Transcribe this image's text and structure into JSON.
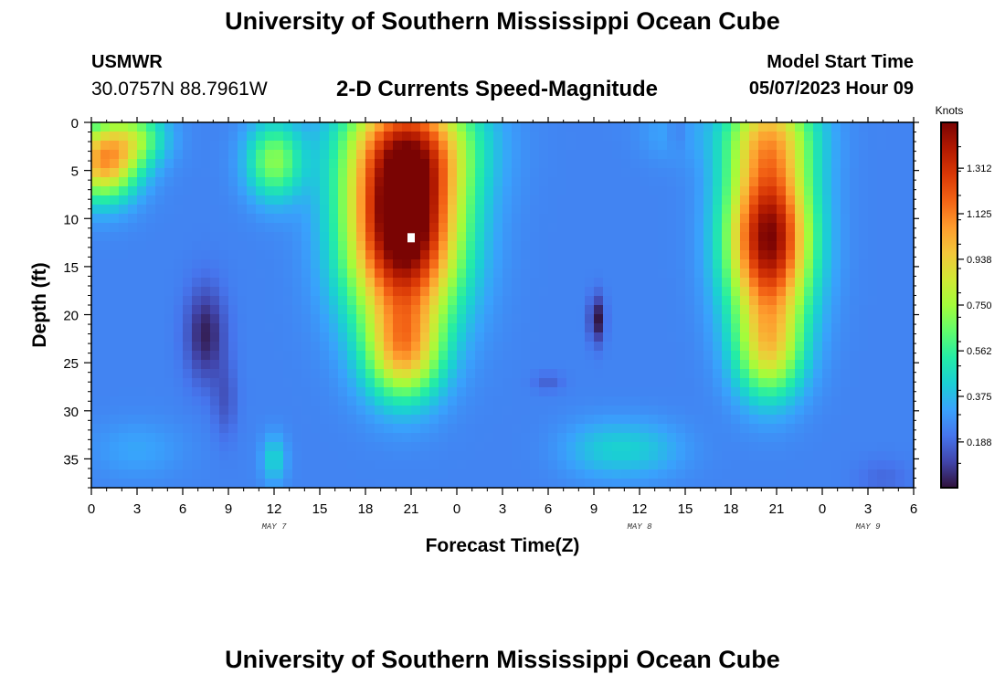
{
  "header": {
    "title": "University of Southern Mississippi Ocean Cube",
    "station": "USMWR",
    "coords": "30.0757N  88.7961W",
    "subtitle": "2-D Currents Speed-Magnitude",
    "model_start_label": "Model Start Time",
    "model_start_value": "05/07/2023 Hour 09"
  },
  "footer": {
    "title": "University of Southern Mississippi Ocean Cube"
  },
  "chart_data": {
    "type": "heatmap",
    "title": "2-D Currents Speed-Magnitude",
    "xlabel": "Forecast Time(Z)",
    "ylabel": "Depth (ft)",
    "x_tick_labels": [
      "0",
      "3",
      "6",
      "9",
      "12",
      "15",
      "18",
      "21",
      "0",
      "3",
      "6",
      "9",
      "12",
      "15",
      "18",
      "21",
      "0",
      "3",
      "6"
    ],
    "x_range_hours": [
      0,
      54
    ],
    "date_labels": [
      {
        "text": "MAY 7",
        "hour": 12
      },
      {
        "text": "MAY 8",
        "hour": 36
      },
      {
        "text": "MAY 9",
        "hour": 51
      }
    ],
    "y_ticks": [
      0,
      5,
      10,
      15,
      20,
      25,
      30,
      35
    ],
    "ylim": [
      0,
      38
    ],
    "y_inverted": true,
    "colorbar": {
      "label": "Knots",
      "ticks": [
        "1.312",
        "1.125",
        "0.938",
        "0.750",
        "0.562",
        "0.375",
        "0.188"
      ],
      "tick_values": [
        1.312,
        1.125,
        0.938,
        0.75,
        0.562,
        0.375,
        0.188
      ],
      "range": [
        0,
        1.5
      ],
      "colors": [
        "#30123b",
        "#4145ab",
        "#4675ed",
        "#39a2fc",
        "#1bcfd4",
        "#24eca6",
        "#61fc6c",
        "#a4fc3b",
        "#d1e834",
        "#f3c63a",
        "#fe9b2d",
        "#f36315",
        "#d93806",
        "#b11901",
        "#7a0403"
      ]
    },
    "speed_blobs_knots": [
      {
        "t": 20.5,
        "d": 11,
        "rt": 3.6,
        "rd": 10,
        "a": 1.4
      },
      {
        "t": 20.5,
        "d": 24,
        "rt": 2.4,
        "rd": 5,
        "a": 0.6
      },
      {
        "t": 21,
        "d": 2,
        "rt": 4.2,
        "rd": 6,
        "a": 0.6
      },
      {
        "t": 44.5,
        "d": 12,
        "rt": 2.7,
        "rd": 9,
        "a": 1.25
      },
      {
        "t": 44.5,
        "d": 1,
        "rt": 3,
        "rd": 5,
        "a": 0.5
      },
      {
        "t": 44.5,
        "d": 24,
        "rt": 2.2,
        "rd": 5,
        "a": 0.5
      },
      {
        "t": 0.8,
        "d": 4,
        "rt": 2.2,
        "rd": 4,
        "a": 0.8
      },
      {
        "t": 3,
        "d": 1.5,
        "rt": 2,
        "rd": 3,
        "a": 0.35
      },
      {
        "t": 12,
        "d": 4,
        "rt": 1.8,
        "rd": 4,
        "a": 0.45
      },
      {
        "t": 12,
        "d": 35,
        "rt": 0.8,
        "rd": 2.5,
        "a": 0.2
      },
      {
        "t": 3,
        "d": 34,
        "rt": 3,
        "rd": 3,
        "a": 0.08
      },
      {
        "t": 36,
        "d": 34,
        "rt": 3,
        "rd": 3,
        "a": 0.15
      },
      {
        "t": 33,
        "d": 34,
        "rt": 2.5,
        "rd": 3,
        "a": 0.1
      },
      {
        "t": 38,
        "d": 1,
        "rt": 2,
        "rd": 3,
        "a": 0.08
      },
      {
        "t": 7.5,
        "d": 22,
        "rt": 1.3,
        "rd": 5,
        "a": -0.22
      },
      {
        "t": 8.8,
        "d": 29,
        "rt": 0.8,
        "rd": 4,
        "a": -0.1
      },
      {
        "t": 33.2,
        "d": 20.5,
        "rt": 0.5,
        "rd": 2.5,
        "a": -0.25
      },
      {
        "t": 30,
        "d": 27,
        "rt": 1,
        "rd": 1,
        "a": -0.08
      },
      {
        "t": 38.5,
        "d": 1,
        "rt": 0.7,
        "rd": 2,
        "a": -0.08
      },
      {
        "t": 52,
        "d": 37,
        "rt": 1.8,
        "rd": 2,
        "a": -0.06
      }
    ],
    "speed_background_knots": 0.25,
    "max_marker": {
      "hour": 21,
      "depth": 12
    }
  }
}
